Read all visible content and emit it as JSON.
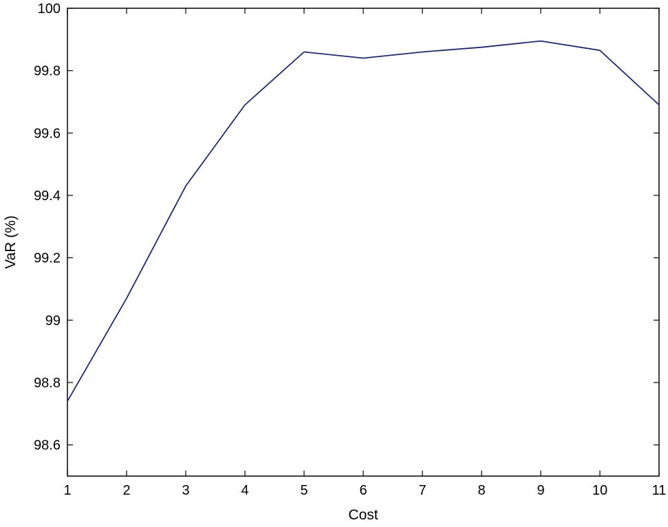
{
  "chart_data": {
    "type": "line",
    "title": "",
    "xlabel": "Cost",
    "ylabel": "VaR (%)",
    "xlim": [
      1,
      11
    ],
    "ylim": [
      98.5,
      100
    ],
    "xticks": [
      1,
      2,
      3,
      4,
      5,
      6,
      7,
      8,
      9,
      10,
      11
    ],
    "xtick_labels": [
      "1",
      "2",
      "3",
      "4",
      "5",
      "6",
      "7",
      "8",
      "9",
      "10",
      "11"
    ],
    "yticks": [
      98.6,
      98.8,
      99,
      99.2,
      99.4,
      99.6,
      99.8,
      100
    ],
    "ytick_labels": [
      "98.6",
      "98.8",
      "99",
      "99.2",
      "99.4",
      "99.6",
      "99.8",
      "100"
    ],
    "grid": false,
    "legend": "none",
    "series": [
      {
        "color": "#1f2a6b",
        "x": [
          1,
          2,
          3,
          4,
          5,
          6,
          7,
          8,
          9,
          10,
          11
        ],
        "y": [
          98.74,
          99.07,
          99.43,
          99.69,
          99.86,
          99.84,
          99.86,
          99.875,
          99.895,
          99.865,
          99.69
        ]
      }
    ]
  }
}
